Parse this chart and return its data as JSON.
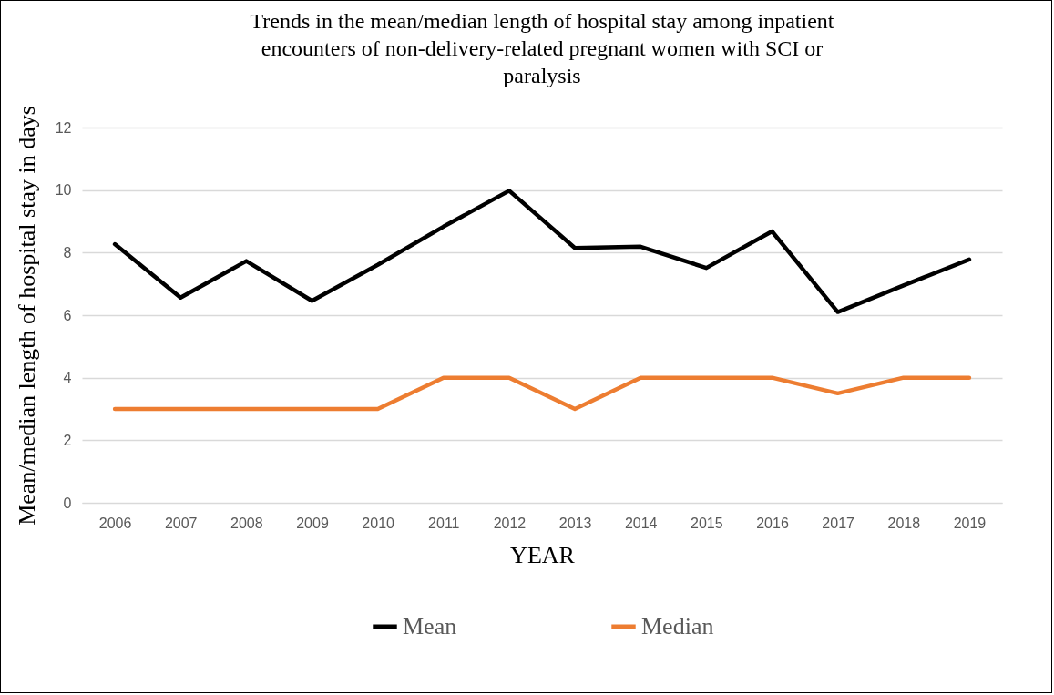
{
  "chart_data": {
    "type": "line",
    "title": "Trends in the mean/median length of hospital stay among inpatient encounters of non-delivery-related pregnant women with SCI or paralysis",
    "xlabel": "YEAR",
    "ylabel": "Mean/median length of hospital stay in days",
    "categories": [
      "2006",
      "2007",
      "2008",
      "2009",
      "2010",
      "2011",
      "2012",
      "2013",
      "2014",
      "2015",
      "2016",
      "2017",
      "2018",
      "2019"
    ],
    "series": [
      {
        "name": "Mean",
        "color": "#000000",
        "values": [
          8.27,
          6.56,
          7.73,
          6.46,
          7.61,
          8.83,
          9.98,
          8.15,
          8.19,
          7.51,
          8.68,
          6.1,
          6.95,
          7.78
        ]
      },
      {
        "name": "Median",
        "color": "#ed7d31",
        "values": [
          3,
          3,
          3,
          3,
          3,
          4,
          4,
          3,
          4,
          4,
          4,
          3.5,
          4,
          4
        ]
      }
    ],
    "ylim": [
      0,
      12
    ],
    "yticks": [
      0,
      2,
      4,
      6,
      8,
      10,
      12
    ],
    "grid": "y",
    "legend": "bottom",
    "marker": "none",
    "line_style": "solid"
  }
}
